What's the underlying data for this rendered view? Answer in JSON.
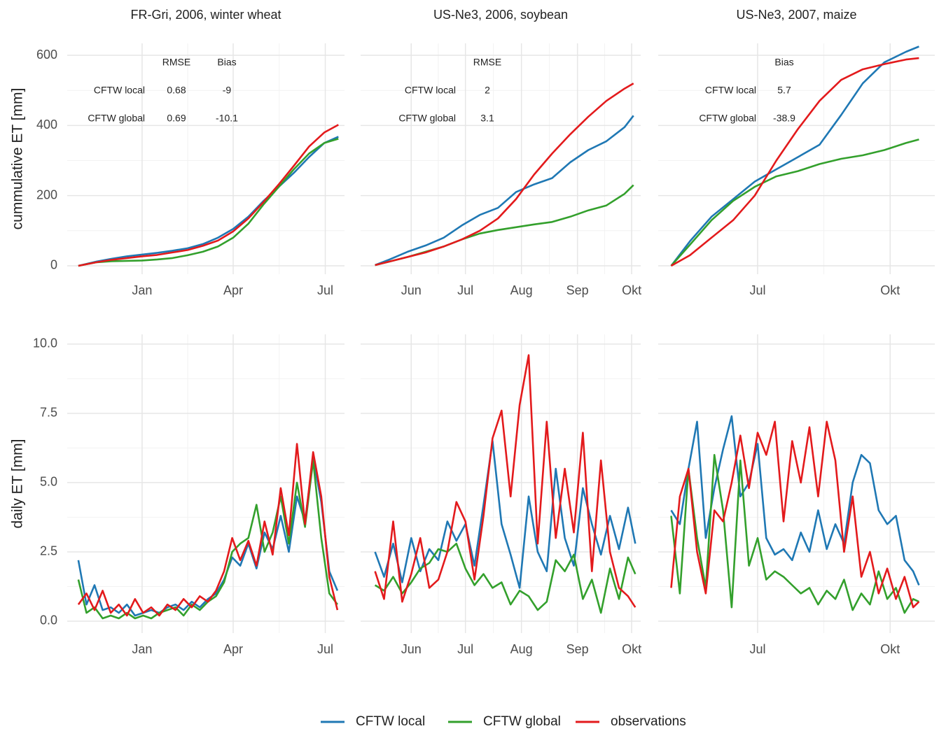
{
  "legend": {
    "series": [
      {
        "name": "CFTW local",
        "color": "#1f78b4"
      },
      {
        "name": "CFTW global",
        "color": "#33a02c"
      },
      {
        "name": "observations",
        "color": "#e31a1c"
      }
    ]
  },
  "chart_data": [
    {
      "type": "line",
      "title": "FR-Gri, 2006, winter wheat",
      "ylabel": "cummulative ET [mm]",
      "table": {
        "columns": [
          "RMSE",
          "Bias"
        ],
        "rows": [
          {
            "label": "CFTW local",
            "values": [
              0.68,
              -9
            ]
          },
          {
            "label": "CFTW global",
            "values": [
              0.69,
              -10.1
            ]
          }
        ]
      },
      "x": [
        -63,
        -45,
        -30,
        -15,
        0,
        15,
        30,
        45,
        60,
        75,
        90,
        105,
        120,
        135,
        150,
        165,
        180,
        194
      ],
      "series": [
        {
          "values": [
            0,
            12,
            20,
            27,
            32,
            37,
            43,
            50,
            62,
            80,
            105,
            140,
            185,
            225,
            265,
            310,
            350,
            368
          ]
        },
        {
          "values": [
            0,
            10,
            13,
            14,
            15,
            18,
            22,
            30,
            40,
            55,
            80,
            120,
            175,
            225,
            275,
            320,
            350,
            362
          ]
        },
        {
          "values": [
            0,
            10,
            17,
            22,
            27,
            31,
            38,
            45,
            57,
            72,
            98,
            135,
            182,
            232,
            285,
            340,
            380,
            402
          ]
        }
      ],
      "xlim": [
        -74,
        200
      ],
      "xticks": [
        {
          "value": 0,
          "label": "Jan"
        },
        {
          "value": 90,
          "label": "Apr"
        },
        {
          "value": 181,
          "label": "Jul"
        }
      ],
      "ylim": [
        -24,
        634
      ],
      "yticks": [
        0,
        200,
        400,
        600
      ],
      "grid": true
    },
    {
      "type": "line",
      "title": "US-Ne3, 2006, soybean",
      "table": {
        "columns": [
          "RMSE"
        ],
        "rows": [
          {
            "label": "CFTW local",
            "values": [
              2
            ]
          },
          {
            "label": "CFTW global",
            "values": [
              3.1
            ]
          }
        ]
      },
      "x": [
        132,
        140,
        150,
        160,
        170,
        180,
        190,
        200,
        210,
        220,
        230,
        240,
        250,
        260,
        270,
        275
      ],
      "series": [
        {
          "values": [
            2,
            18,
            40,
            58,
            80,
            115,
            145,
            165,
            210,
            232,
            250,
            295,
            330,
            355,
            395,
            428
          ]
        },
        {
          "values": [
            2,
            12,
            25,
            40,
            55,
            75,
            92,
            102,
            110,
            118,
            125,
            140,
            158,
            172,
            205,
            230
          ]
        },
        {
          "values": [
            2,
            12,
            25,
            38,
            55,
            75,
            100,
            135,
            190,
            260,
            320,
            375,
            425,
            470,
            505,
            520
          ]
        }
      ],
      "xlim": [
        124,
        279
      ],
      "xticks": [
        {
          "value": 152,
          "label": "Jun"
        },
        {
          "value": 182,
          "label": "Jul"
        },
        {
          "value": 213,
          "label": "Aug"
        },
        {
          "value": 244,
          "label": "Sep"
        },
        {
          "value": 274,
          "label": "Okt"
        }
      ],
      "ylim": [
        -24,
        634
      ],
      "yticks": [
        0,
        200,
        400,
        600
      ],
      "grid": true
    },
    {
      "type": "line",
      "title": "US-Ne3, 2007, maize",
      "table": {
        "columns": [
          "Bias"
        ],
        "rows": [
          {
            "label": "CFTW local",
            "values": [
              5.7
            ]
          },
          {
            "label": "CFTW global",
            "values": [
              -38.9
            ]
          }
        ]
      },
      "x": [
        122,
        135,
        150,
        165,
        180,
        195,
        210,
        225,
        240,
        255,
        270,
        285,
        294
      ],
      "series": [
        {
          "values": [
            0,
            70,
            140,
            190,
            240,
            275,
            310,
            345,
            430,
            520,
            580,
            610,
            625
          ]
        },
        {
          "values": [
            0,
            60,
            130,
            185,
            225,
            255,
            270,
            290,
            305,
            315,
            330,
            350,
            360
          ]
        },
        {
          "values": [
            0,
            30,
            80,
            130,
            200,
            300,
            390,
            470,
            530,
            560,
            575,
            588,
            592
          ]
        }
      ],
      "xlim": [
        113,
        305
      ],
      "xticks": [
        {
          "value": 182,
          "label": "Jul"
        },
        {
          "value": 274,
          "label": "Okt"
        }
      ],
      "ylim": [
        -24,
        634
      ],
      "yticks": [
        0,
        200,
        400,
        600
      ],
      "grid": true
    },
    {
      "type": "line",
      "ylabel": "daily ET [mm]",
      "x": [
        -63,
        -55,
        -47,
        -39,
        -31,
        -23,
        -15,
        -7,
        1,
        9,
        17,
        25,
        33,
        41,
        49,
        57,
        65,
        73,
        81,
        89,
        97,
        105,
        113,
        121,
        129,
        137,
        145,
        153,
        161,
        169,
        177,
        185,
        193
      ],
      "series": [
        {
          "values": [
            2.2,
            0.6,
            1.3,
            0.4,
            0.5,
            0.3,
            0.6,
            0.2,
            0.3,
            0.4,
            0.3,
            0.5,
            0.6,
            0.4,
            0.7,
            0.5,
            0.8,
            1.0,
            1.5,
            2.3,
            2.0,
            2.8,
            1.9,
            3.2,
            2.6,
            3.8,
            2.5,
            4.5,
            3.6,
            5.9,
            4.3,
            1.8,
            1.1
          ]
        },
        {
          "values": [
            1.5,
            0.3,
            0.5,
            0.1,
            0.2,
            0.1,
            0.3,
            0.1,
            0.2,
            0.1,
            0.3,
            0.4,
            0.5,
            0.2,
            0.6,
            0.4,
            0.7,
            0.9,
            1.4,
            2.5,
            2.8,
            3.0,
            4.2,
            2.5,
            3.2,
            4.5,
            2.8,
            5.0,
            3.4,
            5.8,
            3.0,
            1.0,
            0.6
          ]
        },
        {
          "values": [
            0.6,
            1.0,
            0.4,
            1.1,
            0.3,
            0.6,
            0.2,
            0.8,
            0.3,
            0.5,
            0.2,
            0.6,
            0.4,
            0.8,
            0.5,
            0.9,
            0.7,
            1.1,
            1.8,
            3.0,
            2.2,
            2.9,
            2.0,
            3.6,
            2.4,
            4.8,
            3.1,
            6.4,
            3.5,
            6.1,
            4.5,
            1.6,
            0.4
          ]
        }
      ],
      "xlim": [
        -74,
        200
      ],
      "xticks": [
        {
          "value": 0,
          "label": "Jan"
        },
        {
          "value": 90,
          "label": "Apr"
        },
        {
          "value": 181,
          "label": "Jul"
        }
      ],
      "ylim": [
        -0.43,
        10.35
      ],
      "yticks": [
        {
          "value": 0,
          "label": "0.0"
        },
        2.5,
        {
          "value": 5,
          "label": "5.0"
        },
        7.5,
        {
          "value": 10,
          "label": "10.0"
        }
      ],
      "grid": true
    },
    {
      "type": "line",
      "x": [
        132,
        137,
        142,
        147,
        152,
        157,
        162,
        167,
        172,
        177,
        182,
        187,
        192,
        197,
        202,
        207,
        212,
        217,
        222,
        227,
        232,
        237,
        242,
        247,
        252,
        257,
        262,
        267,
        272,
        276
      ],
      "series": [
        {
          "values": [
            2.5,
            1.6,
            2.8,
            1.4,
            3.0,
            1.8,
            2.6,
            2.2,
            3.6,
            2.9,
            3.5,
            2.0,
            4.2,
            6.5,
            3.5,
            2.4,
            1.2,
            4.5,
            2.5,
            1.8,
            5.5,
            3.0,
            2.0,
            4.8,
            3.5,
            2.4,
            3.8,
            2.6,
            4.1,
            2.8
          ]
        },
        {
          "values": [
            1.3,
            1.1,
            1.6,
            1.0,
            1.4,
            1.9,
            2.1,
            2.6,
            2.5,
            2.8,
            1.9,
            1.3,
            1.7,
            1.2,
            1.4,
            0.6,
            1.1,
            0.9,
            0.4,
            0.7,
            2.2,
            1.8,
            2.4,
            0.8,
            1.5,
            0.3,
            1.9,
            0.8,
            2.3,
            1.7
          ]
        },
        {
          "values": [
            1.8,
            0.8,
            3.6,
            0.7,
            1.7,
            3.0,
            1.2,
            1.5,
            2.5,
            4.3,
            3.6,
            1.5,
            3.8,
            6.6,
            7.6,
            4.5,
            7.8,
            9.6,
            2.8,
            7.2,
            3.0,
            5.5,
            3.2,
            6.8,
            1.8,
            5.8,
            2.5,
            1.2,
            0.9,
            0.5
          ]
        }
      ],
      "xlim": [
        124,
        279
      ],
      "xticks": [
        {
          "value": 152,
          "label": "Jun"
        },
        {
          "value": 182,
          "label": "Jul"
        },
        {
          "value": 213,
          "label": "Aug"
        },
        {
          "value": 244,
          "label": "Sep"
        },
        {
          "value": 274,
          "label": "Okt"
        }
      ],
      "ylim": [
        -0.43,
        10.35
      ],
      "yticks": [
        {
          "value": 0,
          "label": "0.0"
        },
        2.5,
        {
          "value": 5,
          "label": "5.0"
        },
        7.5,
        {
          "value": 10,
          "label": "10.0"
        }
      ],
      "grid": true
    },
    {
      "type": "line",
      "x": [
        122,
        128,
        134,
        140,
        146,
        152,
        158,
        164,
        170,
        176,
        182,
        188,
        194,
        200,
        206,
        212,
        218,
        224,
        230,
        236,
        242,
        248,
        254,
        260,
        266,
        272,
        278,
        284,
        290,
        294
      ],
      "series": [
        {
          "values": [
            4.0,
            3.5,
            5.5,
            7.2,
            3.0,
            4.8,
            6.2,
            7.4,
            4.5,
            5.0,
            6.4,
            3.0,
            2.4,
            2.6,
            2.2,
            3.2,
            2.5,
            4.0,
            2.6,
            3.5,
            2.8,
            5.0,
            6.0,
            5.7,
            4.0,
            3.5,
            3.8,
            2.2,
            1.8,
            1.3
          ]
        },
        {
          "values": [
            3.8,
            1.0,
            5.5,
            3.0,
            1.2,
            6.0,
            4.0,
            0.5,
            5.8,
            2.0,
            3.0,
            1.5,
            1.8,
            1.6,
            1.3,
            1.0,
            1.2,
            0.6,
            1.1,
            0.8,
            1.5,
            0.4,
            1.0,
            0.6,
            1.8,
            0.8,
            1.2,
            0.3,
            0.8,
            0.7
          ]
        },
        {
          "values": [
            1.2,
            4.5,
            5.5,
            2.5,
            1.0,
            4.0,
            3.6,
            5.0,
            6.7,
            4.8,
            6.8,
            6.0,
            7.2,
            3.6,
            6.5,
            5.0,
            7.0,
            4.5,
            7.2,
            5.8,
            2.5,
            4.5,
            1.6,
            2.5,
            1.0,
            1.9,
            0.8,
            1.6,
            0.5,
            0.7
          ]
        }
      ],
      "xlim": [
        113,
        305
      ],
      "xticks": [
        {
          "value": 182,
          "label": "Jul"
        },
        {
          "value": 274,
          "label": "Okt"
        }
      ],
      "ylim": [
        -0.43,
        10.35
      ],
      "yticks": [
        {
          "value": 0,
          "label": "0.0"
        },
        2.5,
        {
          "value": 5,
          "label": "5.0"
        },
        7.5,
        {
          "value": 10,
          "label": "10.0"
        }
      ],
      "grid": true
    }
  ]
}
